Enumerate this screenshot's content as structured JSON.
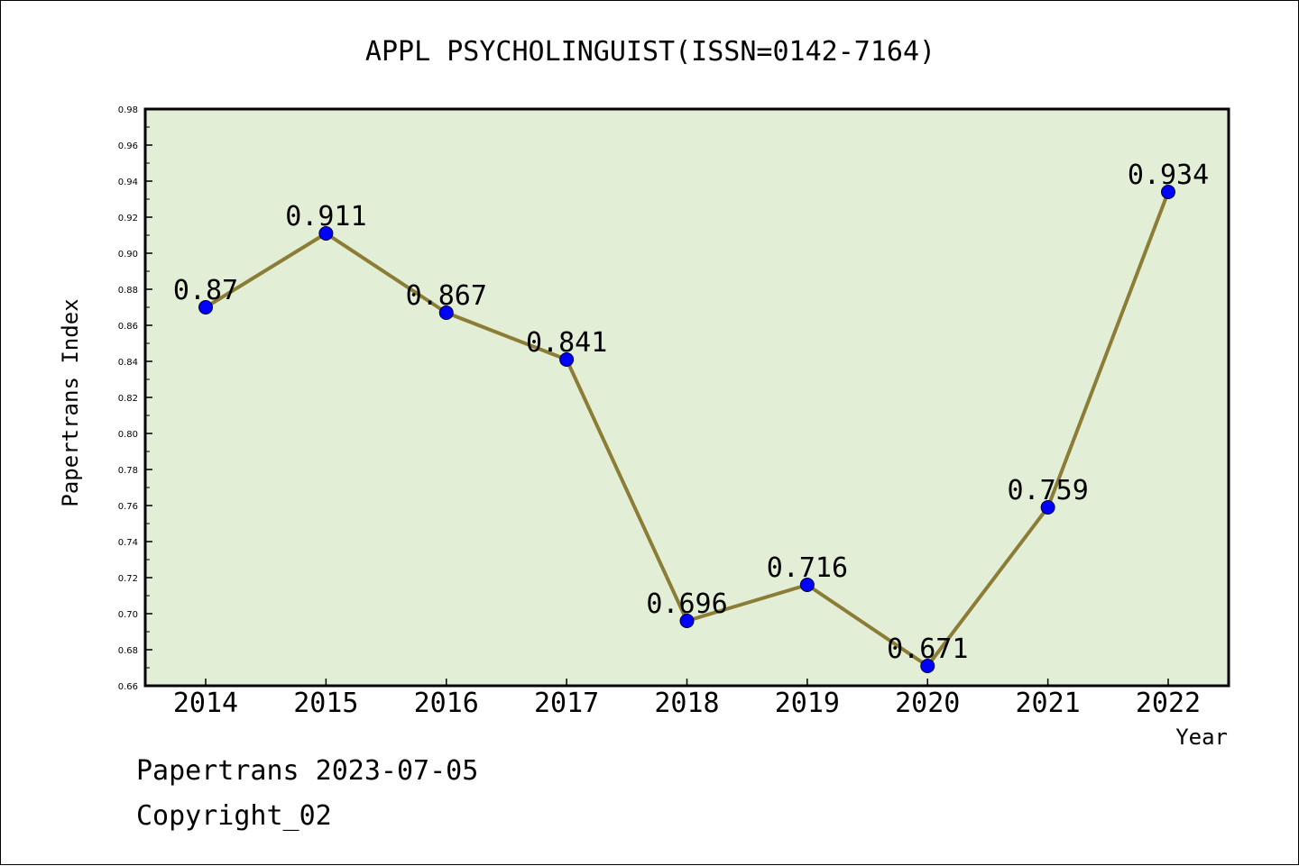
{
  "chart_data": {
    "type": "line",
    "title": "APPL PSYCHOLINGUIST(ISSN=0142-7164)",
    "xlabel": "Year",
    "ylabel": "Papertrans Index",
    "categories": [
      "2014",
      "2015",
      "2016",
      "2017",
      "2018",
      "2019",
      "2020",
      "2021",
      "2022"
    ],
    "values": [
      0.87,
      0.911,
      0.867,
      0.841,
      0.696,
      0.716,
      0.671,
      0.759,
      0.934
    ],
    "value_labels": [
      "0.87",
      "0.911",
      "0.867",
      "0.841",
      "0.696",
      "0.716",
      "0.671",
      "0.759",
      "0.934"
    ],
    "ylim": [
      0.66,
      0.98
    ],
    "yticks": [
      "0.66",
      "0.68",
      "0.70",
      "0.72",
      "0.74",
      "0.76",
      "0.78",
      "0.80",
      "0.82",
      "0.84",
      "0.86",
      "0.88",
      "0.90",
      "0.92",
      "0.94",
      "0.96",
      "0.98"
    ],
    "grid": false,
    "colors": {
      "plot_background": "#e2efd6",
      "line": "#8c7d36",
      "marker": "#0000ff"
    }
  },
  "footer": {
    "line1": "Papertrans 2023-07-05",
    "line2": "Copyright_02"
  }
}
